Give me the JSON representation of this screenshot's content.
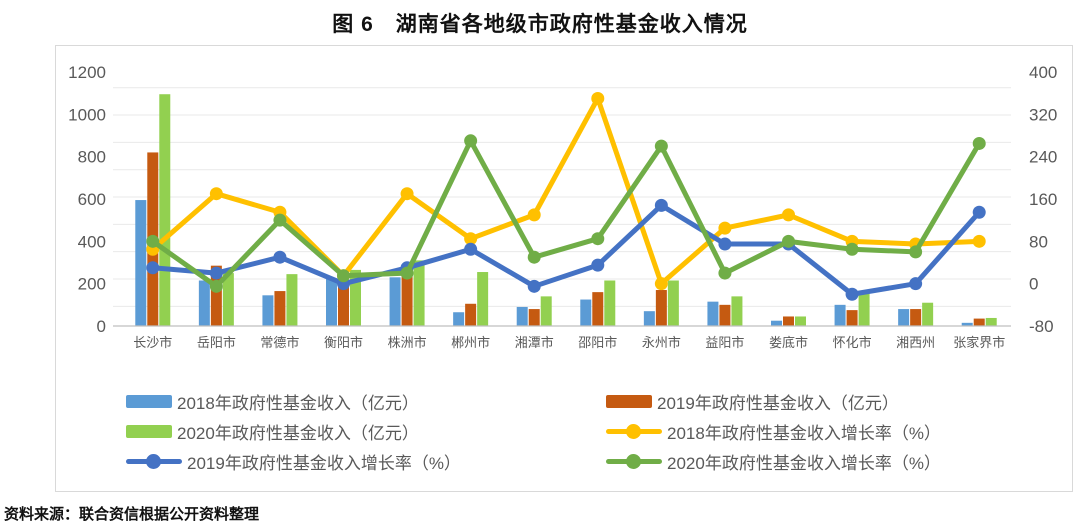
{
  "title": "图 6　湖南省各地级市政府性基金收入情况",
  "source": "资料来源：联合资信根据公开资料整理",
  "chart_data": {
    "type": "bar+line",
    "title": "图 6　湖南省各地级市政府性基金收入情况",
    "categories": [
      "长沙市",
      "岳阳市",
      "常德市",
      "衡阳市",
      "株洲市",
      "郴州市",
      "湘潭市",
      "邵阳市",
      "永州市",
      "益阳市",
      "娄底市",
      "怀化市",
      "湘西州",
      "张家界市"
    ],
    "left_axis": {
      "min": 0,
      "max": 1200,
      "step": 200,
      "ticks": [
        1200,
        1000,
        800,
        600,
        400,
        200,
        0
      ]
    },
    "right_axis": {
      "min": -80,
      "max": 400,
      "step": 80,
      "ticks": [
        400,
        320,
        240,
        160,
        80,
        0,
        -80
      ]
    },
    "grid": true,
    "legend_position": "bottom",
    "bar_series": [
      {
        "name": "2018年政府性基金收入（亿元）",
        "color": "#5B9BD5",
        "axis": "left",
        "values": [
          595,
          215,
          145,
          225,
          230,
          65,
          90,
          125,
          70,
          115,
          25,
          100,
          80,
          15
        ]
      },
      {
        "name": "2019年政府性基金收入（亿元）",
        "color": "#C55A11",
        "axis": "left",
        "values": [
          820,
          285,
          165,
          200,
          285,
          105,
          80,
          160,
          170,
          100,
          45,
          75,
          80,
          35
        ]
      },
      {
        "name": "2020年政府性基金收入（亿元）",
        "color": "#92D050",
        "axis": "left",
        "values": [
          1095,
          250,
          245,
          265,
          310,
          255,
          140,
          215,
          215,
          140,
          45,
          155,
          110,
          38
        ]
      }
    ],
    "line_series": [
      {
        "name": "2018年政府性基金收入增长率（%）",
        "color": "#FFC000",
        "axis": "right",
        "values": [
          65,
          170,
          135,
          15,
          170,
          85,
          130,
          350,
          0,
          105,
          130,
          80,
          75,
          80
        ]
      },
      {
        "name": "2019年政府性基金收入增长率（%）",
        "color": "#4472C4",
        "axis": "right",
        "values": [
          30,
          20,
          50,
          0,
          30,
          65,
          -5,
          35,
          148,
          75,
          75,
          -20,
          0,
          135
        ]
      },
      {
        "name": "2020年政府性基金收入增长率（%）",
        "color": "#70AD47",
        "axis": "right",
        "values": [
          80,
          -5,
          120,
          15,
          20,
          270,
          50,
          85,
          260,
          20,
          80,
          65,
          60,
          265
        ]
      }
    ]
  },
  "legend": {
    "left": [
      {
        "swatch": "bar",
        "color": "#5B9BD5",
        "label": "2018年政府性基金收入（亿元）"
      },
      {
        "swatch": "bar",
        "color": "#92D050",
        "label": "2020年政府性基金收入（亿元）"
      },
      {
        "swatch": "line",
        "color": "#4472C4",
        "label": "2019年政府性基金收入增长率（%）"
      }
    ],
    "right": [
      {
        "swatch": "bar",
        "color": "#C55A11",
        "label": "2019年政府性基金收入（亿元）"
      },
      {
        "swatch": "line",
        "color": "#FFC000",
        "label": "2018年政府性基金收入增长率（%）"
      },
      {
        "swatch": "line",
        "color": "#70AD47",
        "label": "2020年政府性基金收入增长率（%）"
      }
    ]
  }
}
